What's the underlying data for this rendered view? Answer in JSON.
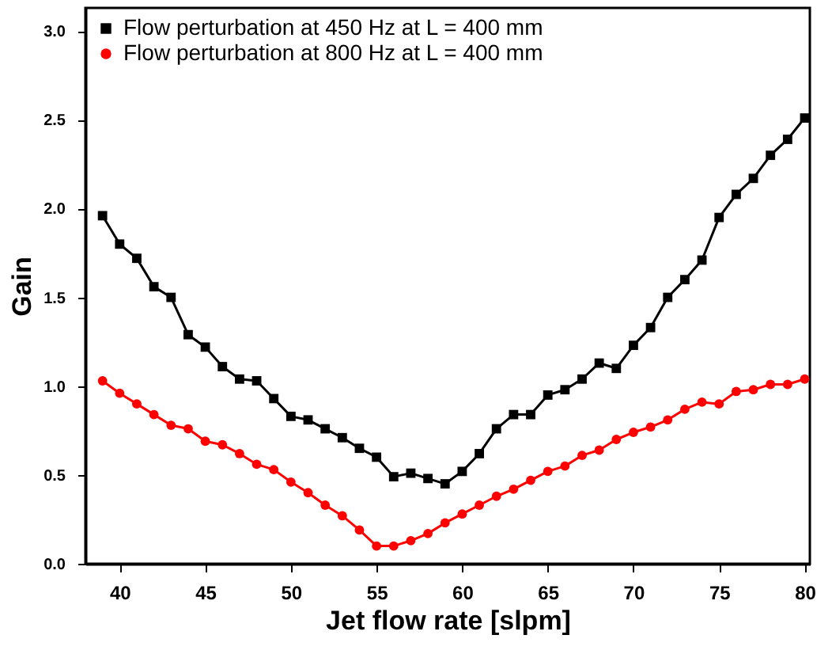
{
  "chart_data": {
    "type": "line",
    "xlabel": "Jet flow rate [slpm]",
    "ylabel": "Gain",
    "x": [
      39,
      40,
      41,
      42,
      43,
      44,
      45,
      46,
      47,
      48,
      49,
      50,
      51,
      52,
      53,
      54,
      55,
      56,
      57,
      58,
      59,
      60,
      61,
      62,
      63,
      64,
      65,
      66,
      67,
      68,
      69,
      70,
      71,
      72,
      73,
      74,
      75,
      76,
      77,
      78,
      79,
      80
    ],
    "series": [
      {
        "name": "Flow perturbation at 450 Hz at L = 400 mm",
        "color": "#000000",
        "marker": "square",
        "values": [
          1.96,
          1.8,
          1.72,
          1.56,
          1.5,
          1.29,
          1.22,
          1.11,
          1.04,
          1.03,
          0.93,
          0.83,
          0.81,
          0.76,
          0.71,
          0.65,
          0.6,
          0.49,
          0.51,
          0.48,
          0.45,
          0.52,
          0.62,
          0.76,
          0.84,
          0.84,
          0.95,
          0.98,
          1.04,
          1.13,
          1.1,
          1.23,
          1.33,
          1.5,
          1.6,
          1.71,
          1.95,
          2.08,
          2.17,
          2.3,
          2.39,
          2.51
        ]
      },
      {
        "name": "Flow perturbation at 800 Hz at L = 400 mm",
        "color": "#ff0000",
        "marker": "circle",
        "values": [
          1.03,
          0.96,
          0.9,
          0.84,
          0.78,
          0.76,
          0.69,
          0.67,
          0.62,
          0.56,
          0.53,
          0.46,
          0.4,
          0.33,
          0.27,
          0.19,
          0.1,
          0.1,
          0.13,
          0.17,
          0.23,
          0.28,
          0.33,
          0.38,
          0.42,
          0.47,
          0.52,
          0.55,
          0.61,
          0.64,
          0.7,
          0.74,
          0.77,
          0.81,
          0.87,
          0.91,
          0.9,
          0.97,
          0.98,
          1.01,
          1.01,
          1.04
        ]
      }
    ],
    "xlim": [
      38,
      80.3
    ],
    "xticks": [
      40,
      45,
      50,
      55,
      60,
      65,
      70,
      75,
      80
    ],
    "ylim": [
      0,
      3.13
    ],
    "yticks": [
      {
        "value": 0,
        "label": "0.0"
      },
      {
        "value": 0.5,
        "label": "0.5"
      },
      {
        "value": 1,
        "label": "1.0"
      },
      {
        "value": 1.5,
        "label": "1.5"
      },
      {
        "value": 2,
        "label": "2.0"
      },
      {
        "value": 2.5,
        "label": "2.5"
      },
      {
        "value": 3,
        "label": "3.0"
      }
    ],
    "grid": false,
    "legend": "top left",
    "line_style": "solid"
  }
}
